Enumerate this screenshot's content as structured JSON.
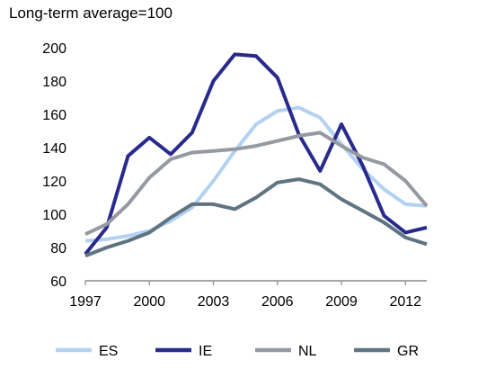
{
  "chart_data": {
    "type": "line",
    "ylabel": "Long-term average=100",
    "xlabel": "",
    "title": "",
    "x": [
      1997,
      1998,
      1999,
      2000,
      2001,
      2002,
      2003,
      2004,
      2005,
      2006,
      2007,
      2008,
      2009,
      2010,
      2011,
      2012,
      2013
    ],
    "xlim": [
      1997,
      2013
    ],
    "ylim": [
      60,
      200
    ],
    "x_ticks": [
      "1997",
      "2000",
      "2003",
      "2006",
      "2009",
      "2012"
    ],
    "y_ticks": [
      "60",
      "80",
      "100",
      "120",
      "140",
      "160",
      "180",
      "200"
    ],
    "grid": false,
    "legend_position": "bottom",
    "series": [
      {
        "name": "ES",
        "color": "#b3d1f0",
        "values": [
          84,
          85,
          87,
          90,
          96,
          104,
          120,
          138,
          154,
          162,
          164,
          158,
          142,
          127,
          115,
          106,
          105
        ]
      },
      {
        "name": "IE",
        "color": "#282a8c",
        "values": [
          76,
          92,
          135,
          146,
          136,
          149,
          180,
          196,
          195,
          182,
          148,
          126,
          154,
          129,
          99,
          89,
          92
        ]
      },
      {
        "name": "NL",
        "color": "#9599a1",
        "values": [
          88,
          94,
          106,
          122,
          133,
          137,
          138,
          139,
          141,
          144,
          147,
          149,
          141,
          134,
          130,
          120,
          105
        ]
      },
      {
        "name": "GR",
        "color": "#5f7482",
        "values": [
          75,
          80,
          84,
          89,
          98,
          106,
          106,
          103,
          110,
          119,
          121,
          118,
          109,
          102,
          95,
          86,
          82
        ]
      }
    ]
  }
}
